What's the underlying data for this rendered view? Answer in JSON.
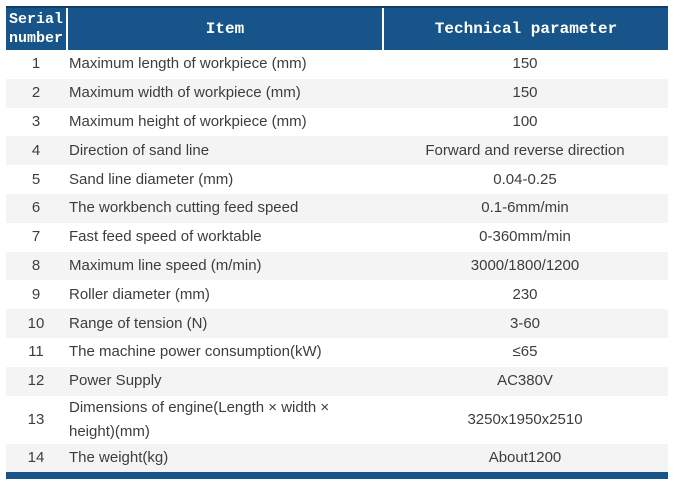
{
  "table": {
    "columns": [
      "Serial number",
      "Item",
      "Technical parameter"
    ],
    "rows": [
      {
        "serial": "1",
        "item": "Maximum length of workpiece (mm)",
        "value": "150"
      },
      {
        "serial": "2",
        "item": "Maximum width of workpiece (mm)",
        "value": "150"
      },
      {
        "serial": "3",
        "item": "Maximum height of workpiece (mm)",
        "value": "100"
      },
      {
        "serial": "4",
        "item": "Direction of sand line",
        "value": "Forward and reverse direction"
      },
      {
        "serial": "5",
        "item": "Sand line diameter (mm)",
        "value": "0.04-0.25"
      },
      {
        "serial": "6",
        "item": "The workbench cutting feed speed",
        "value": "0.1-6mm/min"
      },
      {
        "serial": "7",
        "item": "Fast feed speed of worktable",
        "value": "0-360mm/min"
      },
      {
        "serial": "8",
        "item": "Maximum line speed (m/min)",
        "value": "3000/1800/1200"
      },
      {
        "serial": "9",
        "item": "Roller diameter (mm)",
        "value": "230"
      },
      {
        "serial": "10",
        "item": "Range of tension (N)",
        "value": "3-60"
      },
      {
        "serial": "11",
        "item": "The machine power consumption(kW)",
        "value": "≤65"
      },
      {
        "serial": "12",
        "item": "Power Supply",
        "value": "AC380V"
      },
      {
        "serial": "13",
        "item": "Dimensions of engine(Length × width × height)(mm)",
        "value": "3250x1950x2510"
      },
      {
        "serial": "14",
        "item": "The weight(kg)",
        "value": "About1200"
      }
    ],
    "colors": {
      "header_bg": "#17548a",
      "header_text": "#ffffff",
      "row_bg": "#ffffff",
      "row_alt_bg": "#f4f4f4",
      "body_text": "#3d3d3d",
      "accent_bar": "#17548a"
    }
  }
}
